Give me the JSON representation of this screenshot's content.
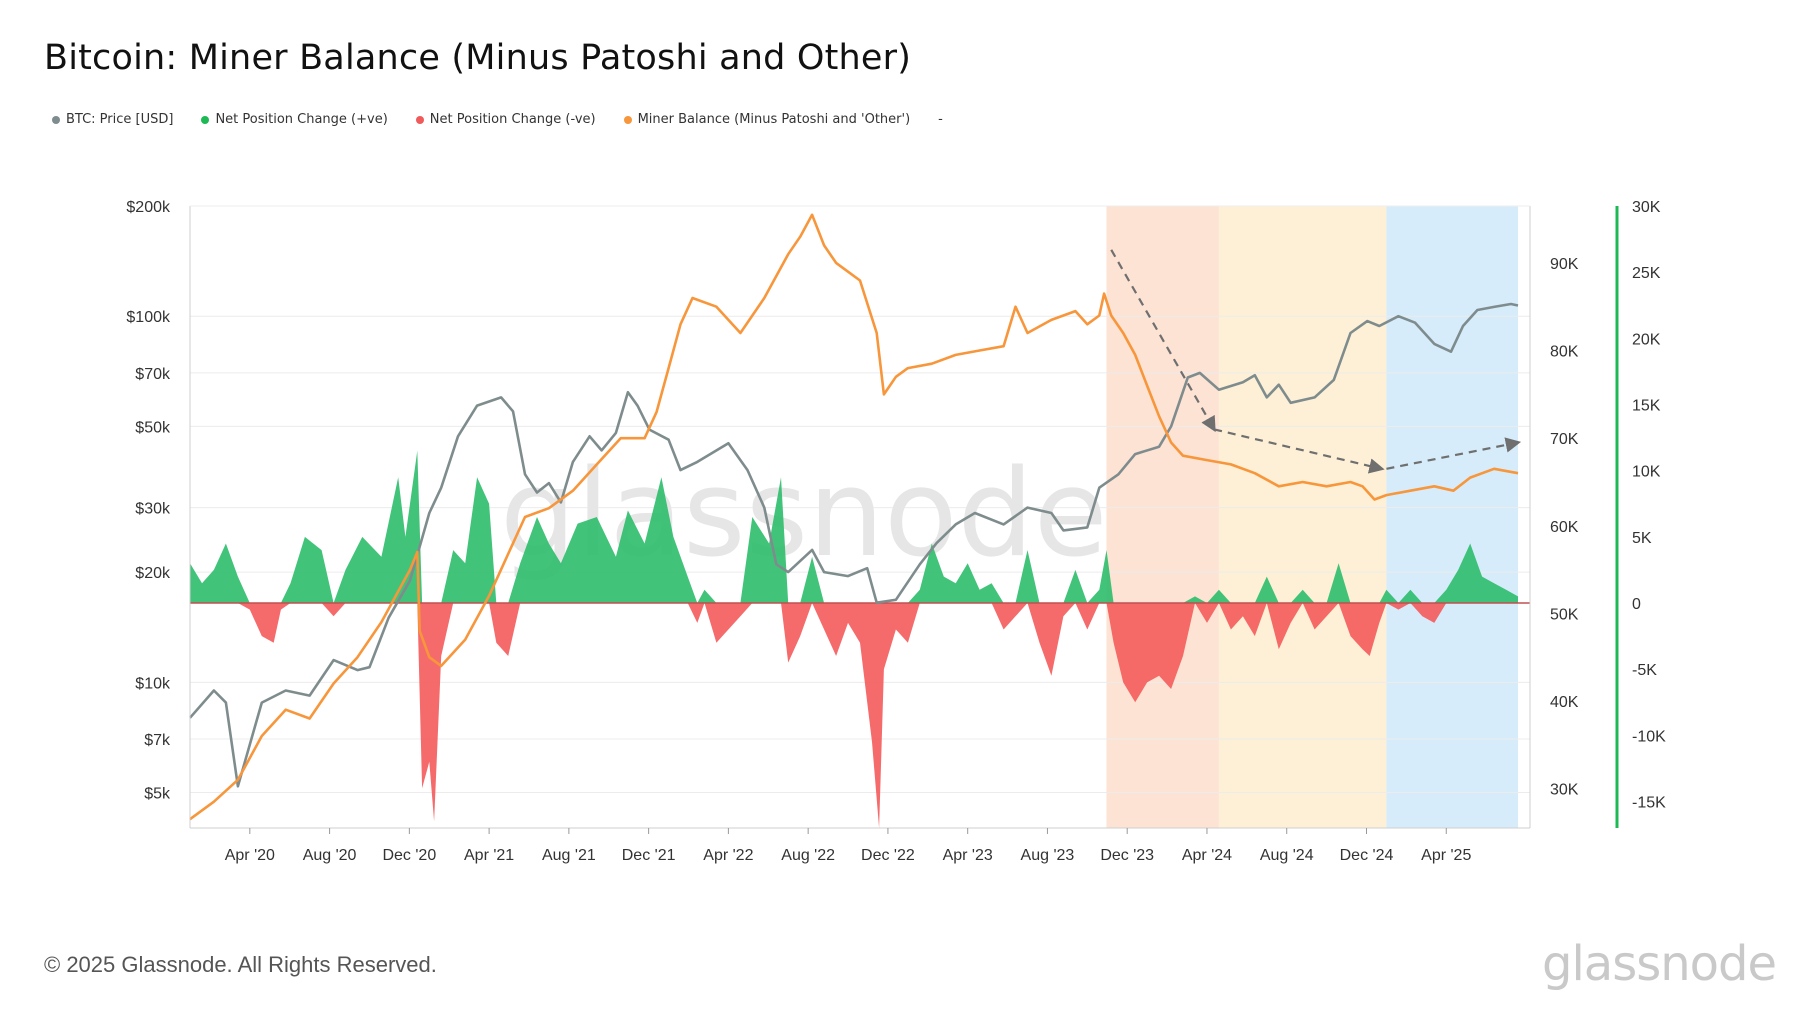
{
  "title": "Bitcoin: Miner Balance (Minus Patoshi and Other)",
  "legend": [
    {
      "label": "BTC: Price [USD]",
      "color": "#7f8c8d"
    },
    {
      "label": "Net Position Change (+ve)",
      "color": "#1db954"
    },
    {
      "label": "Net Position Change (-ve)",
      "color": "#f05a5a"
    },
    {
      "label": "Miner Balance (Minus Patoshi and 'Other')",
      "color": "#f7963b"
    }
  ],
  "legend_extra": "-",
  "footer": "© 2025 Glassnode. All Rights Reserved.",
  "brand": "glassnode",
  "chart_data": {
    "type": "line",
    "title": "Bitcoin: Miner Balance (Minus Patoshi and Other)",
    "x_tick_labels": [
      "Apr '20",
      "Aug '20",
      "Dec '20",
      "Apr '21",
      "Aug '21",
      "Dec '21",
      "Apr '22",
      "Aug '22",
      "Dec '22",
      "Apr '23",
      "Aug '23",
      "Dec '23",
      "Apr '24",
      "Aug '24",
      "Dec '24",
      "Apr '25"
    ],
    "x_range": [
      "2020-01",
      "2025-07"
    ],
    "price_axis": {
      "scale": "log",
      "range": [
        4000,
        200000
      ],
      "ticks": [
        [
          5000,
          "$5k"
        ],
        [
          7000,
          "$7k"
        ],
        [
          10000,
          "$10k"
        ],
        [
          20000,
          "$20k"
        ],
        [
          30000,
          "$30k"
        ],
        [
          50000,
          "$50k"
        ],
        [
          70000,
          "$70k"
        ],
        [
          100000,
          "$100k"
        ],
        [
          200000,
          "$200k"
        ]
      ]
    },
    "balance_axis": {
      "range": [
        25500,
        96500
      ],
      "ticks": [
        [
          30000,
          "30K"
        ],
        [
          40000,
          "40K"
        ],
        [
          50000,
          "50K"
        ],
        [
          60000,
          "60K"
        ],
        [
          70000,
          "70K"
        ],
        [
          80000,
          "80K"
        ],
        [
          90000,
          "90K"
        ]
      ]
    },
    "change_axis": {
      "range": [
        -17000,
        30000
      ],
      "ticks": [
        [
          30000,
          "30K"
        ],
        [
          25000,
          "25K"
        ],
        [
          20000,
          "20K"
        ],
        [
          15000,
          "15K"
        ],
        [
          10000,
          "10K"
        ],
        [
          5000,
          "5K"
        ],
        [
          0,
          "0"
        ],
        [
          -5000,
          "-5K"
        ],
        [
          -10000,
          "-10K"
        ],
        [
          -15000,
          "-15K"
        ]
      ]
    },
    "btc_price": [
      [
        2020.0,
        8000
      ],
      [
        2020.1,
        9500
      ],
      [
        2020.15,
        8800
      ],
      [
        2020.2,
        5200
      ],
      [
        2020.3,
        8800
      ],
      [
        2020.4,
        9500
      ],
      [
        2020.5,
        9200
      ],
      [
        2020.6,
        11500
      ],
      [
        2020.7,
        10800
      ],
      [
        2020.75,
        11000
      ],
      [
        2020.83,
        15000
      ],
      [
        2020.92,
        19000
      ],
      [
        2021.0,
        29000
      ],
      [
        2021.05,
        34000
      ],
      [
        2021.12,
        47000
      ],
      [
        2021.2,
        57000
      ],
      [
        2021.3,
        60000
      ],
      [
        2021.35,
        55000
      ],
      [
        2021.4,
        37000
      ],
      [
        2021.45,
        33000
      ],
      [
        2021.5,
        35000
      ],
      [
        2021.55,
        31000
      ],
      [
        2021.6,
        40000
      ],
      [
        2021.67,
        47000
      ],
      [
        2021.72,
        43000
      ],
      [
        2021.78,
        48000
      ],
      [
        2021.83,
        62000
      ],
      [
        2021.87,
        57000
      ],
      [
        2021.92,
        49000
      ],
      [
        2022.0,
        46000
      ],
      [
        2022.05,
        38000
      ],
      [
        2022.12,
        40000
      ],
      [
        2022.25,
        45000
      ],
      [
        2022.33,
        38000
      ],
      [
        2022.4,
        30000
      ],
      [
        2022.45,
        21000
      ],
      [
        2022.5,
        20000
      ],
      [
        2022.6,
        23000
      ],
      [
        2022.65,
        20000
      ],
      [
        2022.75,
        19500
      ],
      [
        2022.83,
        20500
      ],
      [
        2022.87,
        16500
      ],
      [
        2022.95,
        16800
      ],
      [
        2023.05,
        21000
      ],
      [
        2023.12,
        24000
      ],
      [
        2023.2,
        27000
      ],
      [
        2023.28,
        29000
      ],
      [
        2023.4,
        27000
      ],
      [
        2023.5,
        30000
      ],
      [
        2023.6,
        29000
      ],
      [
        2023.65,
        26000
      ],
      [
        2023.75,
        26500
      ],
      [
        2023.8,
        34000
      ],
      [
        2023.88,
        37000
      ],
      [
        2023.95,
        42000
      ],
      [
        2024.05,
        44000
      ],
      [
        2024.1,
        50000
      ],
      [
        2024.17,
        68000
      ],
      [
        2024.22,
        70000
      ],
      [
        2024.3,
        63000
      ],
      [
        2024.4,
        66000
      ],
      [
        2024.45,
        69000
      ],
      [
        2024.5,
        60000
      ],
      [
        2024.55,
        65000
      ],
      [
        2024.6,
        58000
      ],
      [
        2024.7,
        60000
      ],
      [
        2024.78,
        67000
      ],
      [
        2024.85,
        90000
      ],
      [
        2024.92,
        97000
      ],
      [
        2024.97,
        94000
      ],
      [
        2025.05,
        100000
      ],
      [
        2025.12,
        96000
      ],
      [
        2025.2,
        84000
      ],
      [
        2025.27,
        80000
      ],
      [
        2025.32,
        94000
      ],
      [
        2025.38,
        104000
      ],
      [
        2025.45,
        106000
      ],
      [
        2025.52,
        108000
      ],
      [
        2025.55,
        107000
      ]
    ],
    "miner_balance": [
      [
        2020.0,
        26500
      ],
      [
        2020.1,
        28500
      ],
      [
        2020.2,
        31000
      ],
      [
        2020.3,
        36000
      ],
      [
        2020.4,
        39000
      ],
      [
        2020.5,
        38000
      ],
      [
        2020.6,
        42000
      ],
      [
        2020.7,
        45000
      ],
      [
        2020.8,
        49000
      ],
      [
        2020.92,
        55000
      ],
      [
        2020.95,
        57000
      ],
      [
        2020.96,
        48000
      ],
      [
        2021.0,
        45000
      ],
      [
        2021.05,
        44000
      ],
      [
        2021.15,
        47000
      ],
      [
        2021.25,
        52000
      ],
      [
        2021.35,
        58000
      ],
      [
        2021.4,
        61000
      ],
      [
        2021.5,
        62000
      ],
      [
        2021.6,
        64000
      ],
      [
        2021.7,
        67000
      ],
      [
        2021.8,
        70000
      ],
      [
        2021.9,
        70000
      ],
      [
        2021.95,
        73000
      ],
      [
        2022.0,
        78000
      ],
      [
        2022.05,
        83000
      ],
      [
        2022.1,
        86000
      ],
      [
        2022.2,
        85000
      ],
      [
        2022.3,
        82000
      ],
      [
        2022.4,
        86000
      ],
      [
        2022.5,
        91000
      ],
      [
        2022.55,
        93000
      ],
      [
        2022.6,
        95500
      ],
      [
        2022.65,
        92000
      ],
      [
        2022.7,
        90000
      ],
      [
        2022.75,
        89000
      ],
      [
        2022.8,
        88000
      ],
      [
        2022.87,
        82000
      ],
      [
        2022.9,
        75000
      ],
      [
        2022.95,
        77000
      ],
      [
        2023.0,
        78000
      ],
      [
        2023.1,
        78500
      ],
      [
        2023.2,
        79500
      ],
      [
        2023.3,
        80000
      ],
      [
        2023.4,
        80500
      ],
      [
        2023.45,
        85000
      ],
      [
        2023.5,
        82000
      ],
      [
        2023.6,
        83500
      ],
      [
        2023.7,
        84500
      ],
      [
        2023.75,
        83000
      ],
      [
        2023.8,
        84000
      ],
      [
        2023.82,
        86500
      ],
      [
        2023.85,
        84000
      ],
      [
        2023.9,
        82000
      ],
      [
        2023.95,
        79500
      ],
      [
        2024.0,
        76000
      ],
      [
        2024.05,
        72500
      ],
      [
        2024.1,
        69500
      ],
      [
        2024.15,
        68000
      ],
      [
        2024.25,
        67500
      ],
      [
        2024.35,
        67000
      ],
      [
        2024.45,
        66000
      ],
      [
        2024.55,
        64500
      ],
      [
        2024.65,
        65000
      ],
      [
        2024.75,
        64500
      ],
      [
        2024.85,
        65000
      ],
      [
        2024.9,
        64500
      ],
      [
        2024.95,
        63000
      ],
      [
        2025.0,
        63500
      ],
      [
        2025.1,
        64000
      ],
      [
        2025.2,
        64500
      ],
      [
        2025.28,
        64000
      ],
      [
        2025.35,
        65500
      ],
      [
        2025.45,
        66500
      ],
      [
        2025.55,
        66000
      ]
    ],
    "net_position_change": [
      [
        2020.0,
        3000
      ],
      [
        2020.05,
        1500
      ],
      [
        2020.1,
        2500
      ],
      [
        2020.15,
        4500
      ],
      [
        2020.2,
        2000
      ],
      [
        2020.25,
        -500
      ],
      [
        2020.3,
        -2500
      ],
      [
        2020.35,
        -3000
      ],
      [
        2020.38,
        -500
      ],
      [
        2020.42,
        1500
      ],
      [
        2020.48,
        5000
      ],
      [
        2020.55,
        4000
      ],
      [
        2020.6,
        -1000
      ],
      [
        2020.65,
        2500
      ],
      [
        2020.72,
        5000
      ],
      [
        2020.8,
        3500
      ],
      [
        2020.87,
        9500
      ],
      [
        2020.9,
        5000
      ],
      [
        2020.95,
        11500
      ],
      [
        2020.97,
        -14000
      ],
      [
        2021.0,
        -12000
      ],
      [
        2021.02,
        -16500
      ],
      [
        2021.05,
        -4000
      ],
      [
        2021.1,
        4000
      ],
      [
        2021.15,
        3000
      ],
      [
        2021.2,
        9500
      ],
      [
        2021.25,
        7500
      ],
      [
        2021.28,
        -3000
      ],
      [
        2021.33,
        -4000
      ],
      [
        2021.38,
        3000
      ],
      [
        2021.45,
        6500
      ],
      [
        2021.5,
        4500
      ],
      [
        2021.55,
        3000
      ],
      [
        2021.62,
        6000
      ],
      [
        2021.7,
        6500
      ],
      [
        2021.78,
        3500
      ],
      [
        2021.83,
        7000
      ],
      [
        2021.9,
        4500
      ],
      [
        2021.97,
        9500
      ],
      [
        2022.02,
        5000
      ],
      [
        2022.08,
        2000
      ],
      [
        2022.12,
        -1500
      ],
      [
        2022.15,
        1000
      ],
      [
        2022.2,
        -3000
      ],
      [
        2022.25,
        -2000
      ],
      [
        2022.3,
        -1000
      ],
      [
        2022.35,
        6500
      ],
      [
        2022.42,
        4500
      ],
      [
        2022.47,
        9500
      ],
      [
        2022.5,
        -4500
      ],
      [
        2022.55,
        -2500
      ],
      [
        2022.6,
        3500
      ],
      [
        2022.65,
        -2000
      ],
      [
        2022.7,
        -4000
      ],
      [
        2022.75,
        -1500
      ],
      [
        2022.8,
        -3000
      ],
      [
        2022.85,
        -10500
      ],
      [
        2022.88,
        -17000
      ],
      [
        2022.9,
        -5000
      ],
      [
        2022.95,
        -2000
      ],
      [
        2023.0,
        -3000
      ],
      [
        2023.05,
        1000
      ],
      [
        2023.1,
        4500
      ],
      [
        2023.15,
        2000
      ],
      [
        2023.2,
        1500
      ],
      [
        2023.25,
        3000
      ],
      [
        2023.3,
        1000
      ],
      [
        2023.35,
        1500
      ],
      [
        2023.4,
        -2000
      ],
      [
        2023.45,
        -1000
      ],
      [
        2023.5,
        4000
      ],
      [
        2023.55,
        -3000
      ],
      [
        2023.6,
        -5500
      ],
      [
        2023.65,
        -1000
      ],
      [
        2023.7,
        2500
      ],
      [
        2023.75,
        -2000
      ],
      [
        2023.8,
        1000
      ],
      [
        2023.83,
        4000
      ],
      [
        2023.86,
        -3000
      ],
      [
        2023.9,
        -6000
      ],
      [
        2023.95,
        -7500
      ],
      [
        2024.0,
        -6000
      ],
      [
        2024.05,
        -5500
      ],
      [
        2024.1,
        -6500
      ],
      [
        2024.15,
        -4000
      ],
      [
        2024.2,
        500
      ],
      [
        2024.25,
        -1500
      ],
      [
        2024.3,
        1000
      ],
      [
        2024.35,
        -2000
      ],
      [
        2024.4,
        -1000
      ],
      [
        2024.45,
        -2500
      ],
      [
        2024.5,
        2000
      ],
      [
        2024.55,
        -3500
      ],
      [
        2024.6,
        -1500
      ],
      [
        2024.65,
        1000
      ],
      [
        2024.7,
        -2000
      ],
      [
        2024.75,
        -1000
      ],
      [
        2024.8,
        3000
      ],
      [
        2024.85,
        -2500
      ],
      [
        2024.9,
        -3500
      ],
      [
        2024.93,
        -4000
      ],
      [
        2024.97,
        -1500
      ],
      [
        2025.0,
        1000
      ],
      [
        2025.05,
        -500
      ],
      [
        2025.1,
        1000
      ],
      [
        2025.15,
        -1000
      ],
      [
        2025.2,
        -1500
      ],
      [
        2025.25,
        1000
      ],
      [
        2025.3,
        2500
      ],
      [
        2025.35,
        4500
      ],
      [
        2025.4,
        2000
      ],
      [
        2025.45,
        1500
      ],
      [
        2025.5,
        1000
      ],
      [
        2025.55,
        500
      ]
    ],
    "highlight_periods": [
      {
        "from": 2023.83,
        "to": 2024.3,
        "color": "#fde3d4"
      },
      {
        "from": 2024.3,
        "to": 2025.0,
        "color": "#fdf0d6"
      },
      {
        "from": 2025.0,
        "to": 2025.55,
        "color": "#d6ecfa"
      }
    ],
    "trend_arrows": [
      {
        "from": [
          2023.85,
          91500
        ],
        "to": [
          2024.28,
          71000
        ]
      },
      {
        "from": [
          2024.28,
          71000
        ],
        "to": [
          2024.98,
          66500
        ]
      },
      {
        "from": [
          2025.0,
          66500
        ],
        "to": [
          2025.55,
          69500
        ]
      }
    ]
  }
}
